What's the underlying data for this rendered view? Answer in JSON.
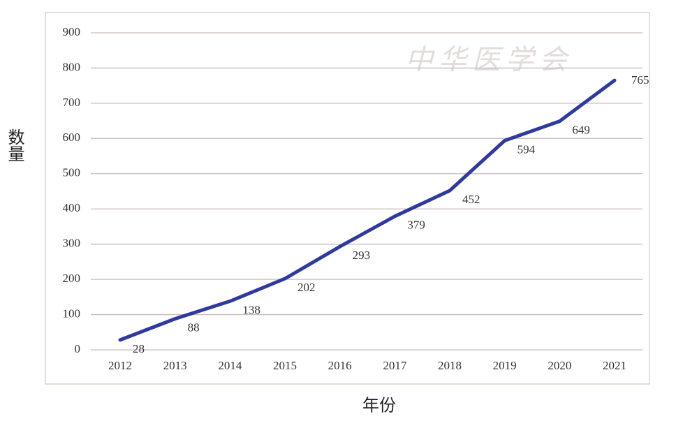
{
  "chart_data": {
    "type": "line",
    "watermark": "中华医学会",
    "xlabel": "年份",
    "ylabel": "数量",
    "categories": [
      "2012",
      "2013",
      "2014",
      "2015",
      "2016",
      "2017",
      "2018",
      "2019",
      "2020",
      "2021"
    ],
    "values": [
      28,
      88,
      138,
      202,
      293,
      379,
      452,
      594,
      649,
      765
    ],
    "color": "#2f3a9c",
    "ylim": [
      0,
      900
    ],
    "yticks": [
      0,
      100,
      200,
      300,
      400,
      500,
      600,
      700,
      800,
      900
    ],
    "grid": true
  }
}
